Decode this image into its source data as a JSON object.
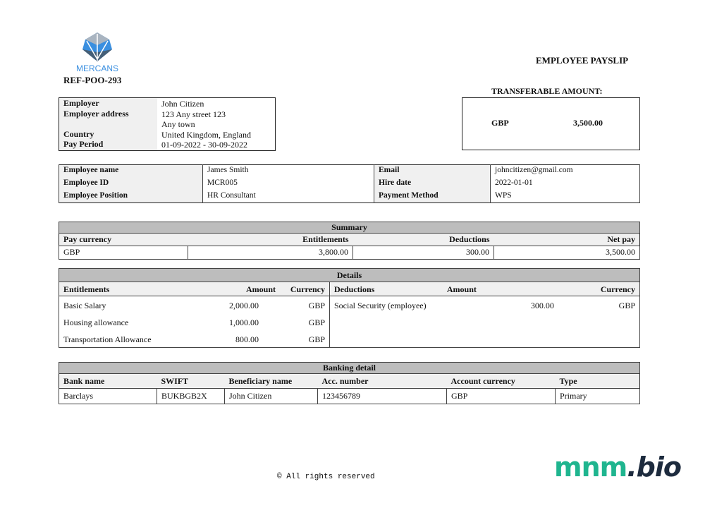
{
  "logo": {
    "text": "MERCANS",
    "colors": [
      "#3a8fe0",
      "#555555"
    ]
  },
  "ref": "REF-POO-293",
  "title": "EMPLOYEE PAYSLIP",
  "transfer": {
    "label": "TRANSFERABLE AMOUNT:",
    "currency": "GBP",
    "amount": "3,500.00"
  },
  "employer": {
    "labels": [
      "Employer",
      "Employer address",
      "",
      "Country",
      "Pay Period"
    ],
    "values": [
      "John Citizen",
      "123 Any street 123",
      "Any town",
      "United Kingdom, England",
      "01-09-2022 - 30-09-2022"
    ]
  },
  "employee": {
    "rows": [
      {
        "l1": "Employee name",
        "v1": "James Smith",
        "l2": "Email",
        "v2": "johncitizen@gmail.com"
      },
      {
        "l1": "Employee ID",
        "v1": "MCR005",
        "l2": "Hire date",
        "v2": "2022-01-01"
      },
      {
        "l1": "Employee Position",
        "v1": "HR Consultant",
        "l2": "Payment Method",
        "v2": "WPS"
      }
    ]
  },
  "summary": {
    "title": "Summary",
    "headers": [
      "Pay currency",
      "Entitlements",
      "Deductions",
      "Net pay"
    ],
    "values": [
      "GBP",
      "3,800.00",
      "300.00",
      "3,500.00"
    ]
  },
  "details": {
    "title": "Details",
    "ent_headers": [
      "Entitlements",
      "Amount",
      "Currency"
    ],
    "ded_headers": [
      "Deductions",
      "Amount",
      "Currency"
    ],
    "entitlements": [
      [
        "Basic Salary",
        "2,000.00",
        "GBP"
      ],
      [
        "Housing allowance",
        "1,000.00",
        "GBP"
      ],
      [
        "Transportation Allowance",
        "800.00",
        "GBP"
      ]
    ],
    "deductions": [
      [
        "Social Security (employee)",
        "300.00",
        "GBP"
      ]
    ]
  },
  "banking": {
    "title": "Banking detail",
    "headers": [
      "Bank name",
      "SWIFT",
      "Beneficiary name",
      "Acc. number",
      "Account currency",
      "Type"
    ],
    "values": [
      "Barclays",
      "BUKBGB2X",
      "John Citizen",
      "123456789",
      "GBP",
      "Primary"
    ]
  },
  "footer": "© All rights reserved",
  "watermark": {
    "part1": "mnm",
    "part2": ".bio",
    "color1": "#1fb58f",
    "color2": "#1d2b3e"
  }
}
